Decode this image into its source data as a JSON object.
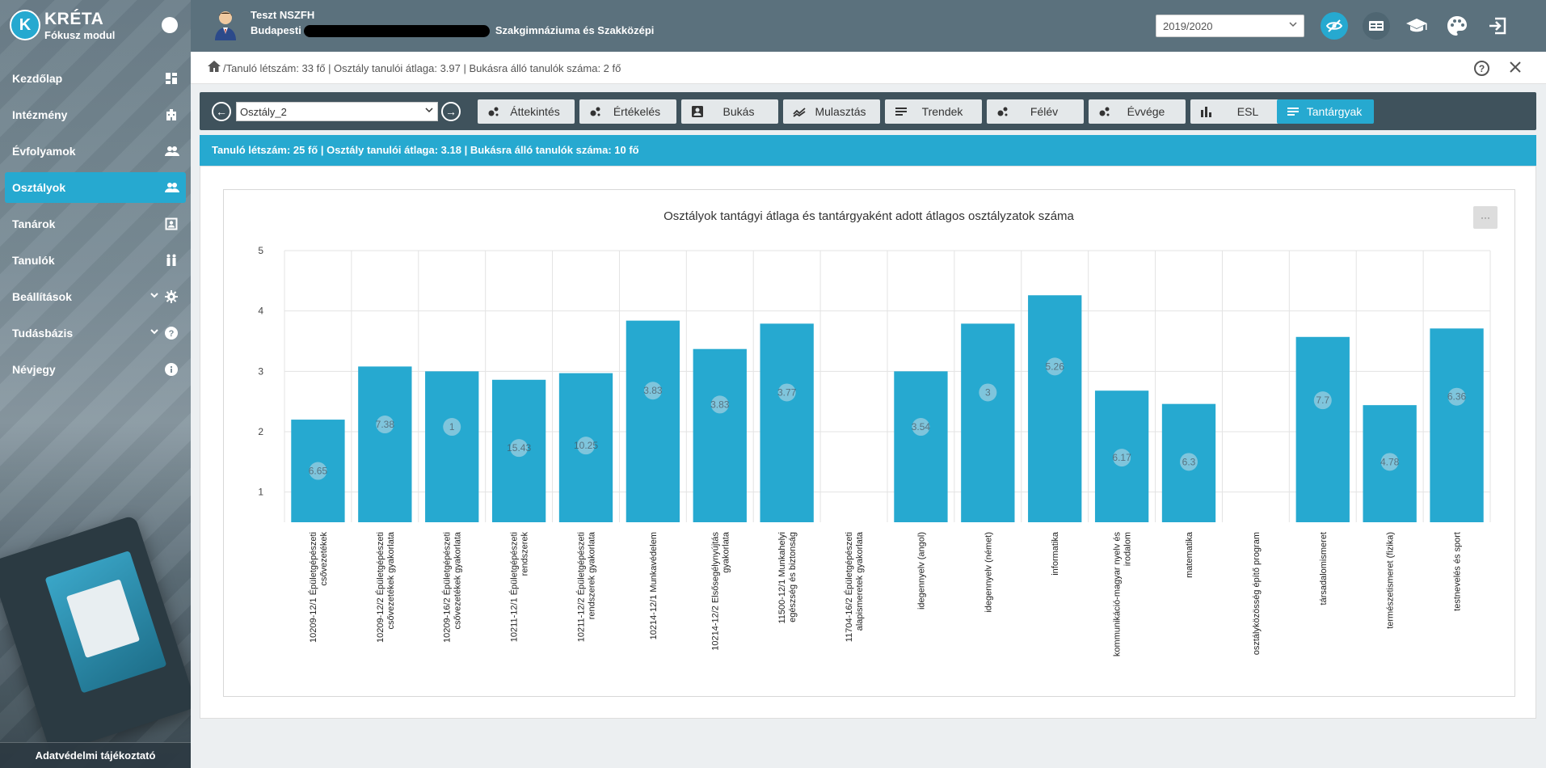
{
  "brand": {
    "logo_letter": "K",
    "title": "KRÉTA",
    "subtitle": "Fókusz modul"
  },
  "sidebar": {
    "items": [
      {
        "label": "Kezdőlap",
        "icon": "dashboard-icon"
      },
      {
        "label": "Intézmény",
        "icon": "building-icon"
      },
      {
        "label": "Évfolyamok",
        "icon": "users-icon"
      },
      {
        "label": "Osztályok",
        "icon": "users-icon",
        "active": true
      },
      {
        "label": "Tanárok",
        "icon": "teacher-icon"
      },
      {
        "label": "Tanulók",
        "icon": "students-icon"
      },
      {
        "label": "Beállítások",
        "icon": "gear-icon"
      },
      {
        "label": "Tudásbázis",
        "icon": "help-icon"
      },
      {
        "label": "Névjegy",
        "icon": "info-icon"
      }
    ],
    "privacy_link": "Adatvédelmi tájékoztató"
  },
  "header": {
    "user_name": "Teszt NSZFH",
    "school_name_start": "Budapesti",
    "school_name_end": "Szakgimnáziuma és Szakközépi",
    "year_select": "2019/2020"
  },
  "breadcrumb": {
    "text": "/Tanuló létszám: 33 fő | Osztály tanulói átlaga: 3.97 | Bukásra álló tanulók száma: 2 fő"
  },
  "toolbar": {
    "prev_arrow": "←",
    "next_arrow": "→",
    "class_select": "Osztály_2",
    "tabs": [
      {
        "label": "Áttekintés"
      },
      {
        "label": "Értékelés"
      },
      {
        "label": "Bukás"
      },
      {
        "label": "Mulasztás"
      },
      {
        "label": "Trendek"
      },
      {
        "label": "Félév"
      },
      {
        "label": "Évvége"
      },
      {
        "label": "ESL"
      },
      {
        "label": "Tantárgyak",
        "active": true
      }
    ]
  },
  "infobar": {
    "text": "Tanuló létszám: 25 fő | Osztály tanulói átlaga: 3.18 | Bukásra álló tanulók száma: 10 fő"
  },
  "chart_menu": "···",
  "colors": {
    "accent": "#26a9d0",
    "bar": "#26a9d0",
    "header": "#5b717d",
    "toolbar": "#3f525c"
  },
  "chart_data": {
    "type": "bar",
    "title": "Osztályok tantágyi átlaga és tantárgyaként adott átlagos osztályzatok száma",
    "ylim": [
      0.5,
      5
    ],
    "yticks": [
      1,
      2,
      3,
      4,
      5
    ],
    "grid": true,
    "categories": [
      [
        "10209-12/1 Épületgépészeti",
        "csővezetékek"
      ],
      [
        "10209-12/2 Épületgépészeti",
        "csővezetékek gyakorlata"
      ],
      [
        "10209-16/2 Épületgépészeti",
        "csővezetékek gyakorlata"
      ],
      [
        "10211-12/1 Épületgépészeti",
        "rendszerek"
      ],
      [
        "10211-12/2 Épületgépészeti",
        "rendszerek gyakorlata"
      ],
      [
        "10214-12/1 Munkavédelem"
      ],
      [
        "10214-12/2 Elsősegélynyújtás",
        "gyakorlata"
      ],
      [
        "11500-12/1 Munkahelyi",
        "egészség és biztonság"
      ],
      [
        "11704-16/2 Épületgépészeti",
        "alapismeretek gyakorlata"
      ],
      [
        "idegennyelv (angol)"
      ],
      [
        "idegennyelv (német)"
      ],
      [
        "informatika"
      ],
      [
        "kommunikáció-magyar nyelv és",
        "irodalom"
      ],
      [
        "matematika"
      ],
      [
        "osztályközösség építő program"
      ],
      [
        "társadalomismeret"
      ],
      [
        "természetismeret (fizika)"
      ],
      [
        "testnevelés és sport"
      ]
    ],
    "values": [
      2.2,
      3.08,
      3.0,
      2.86,
      2.97,
      3.84,
      3.37,
      3.79,
      null,
      3.0,
      3.79,
      4.26,
      2.68,
      2.46,
      null,
      3.57,
      2.44,
      3.71
    ],
    "bubble_labels": [
      "6.65",
      "7.38",
      "1",
      "15.43",
      "10.25",
      "3.83",
      "3.83",
      "3.77",
      "",
      "3.54",
      "3",
      "5.26",
      "6.17",
      "6.3",
      "",
      "7.7",
      "4.78",
      "6.36"
    ],
    "bubble_values": [
      1.35,
      2.12,
      2.08,
      1.73,
      1.77,
      2.68,
      2.45,
      2.65,
      null,
      2.08,
      2.65,
      3.08,
      1.57,
      1.5,
      null,
      2.52,
      1.5,
      2.58
    ]
  }
}
